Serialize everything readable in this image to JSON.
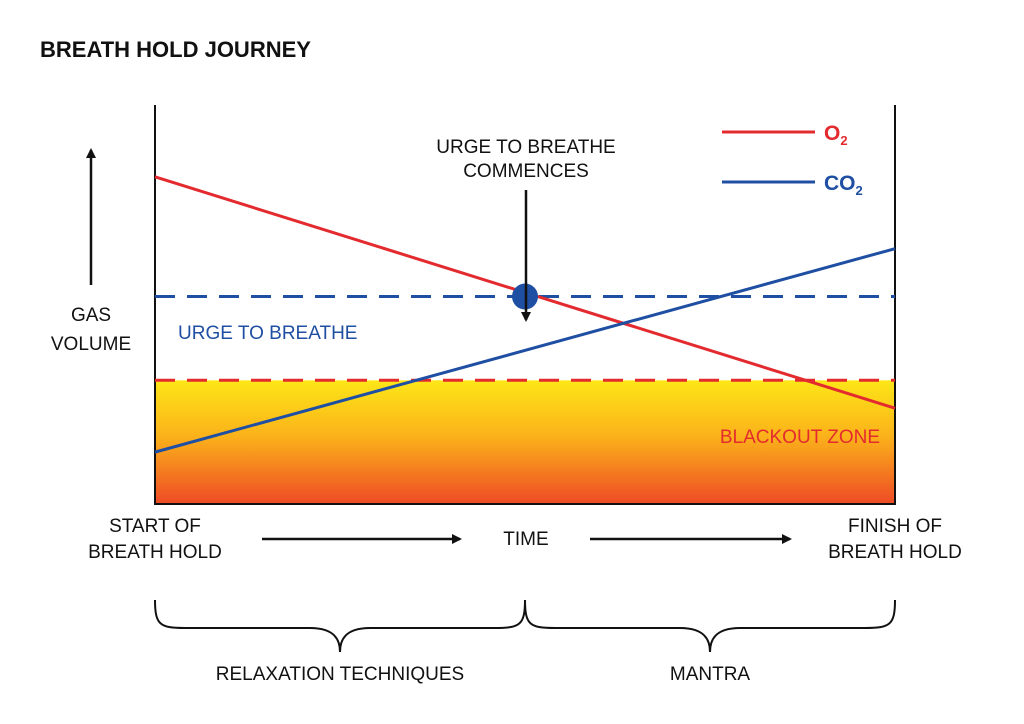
{
  "title": "BREATH HOLD JOURNEY",
  "colors": {
    "o2": "#e32b2f",
    "co2": "#1f4fa3",
    "blackout_label": "#e32b2f",
    "gradient_top": "#fde617",
    "gradient_mid": "#fbb21a",
    "gradient_bottom": "#ee4a25"
  },
  "y_axis": {
    "label_line1": "GAS",
    "label_line2": "VOLUME"
  },
  "legend": [
    {
      "name": "O",
      "subscript": "2",
      "color": "#e32b2f"
    },
    {
      "name": "CO",
      "subscript": "2",
      "color": "#1f4fa3"
    }
  ],
  "annotations": {
    "urge_commences_line1": "URGE TO BREATHE",
    "urge_commences_line2": "COMMENCES",
    "urge_threshold": "URGE TO BREATHE",
    "blackout_zone": "BLACKOUT ZONE"
  },
  "x_axis": {
    "start_line1": "START OF",
    "start_line2": "BREATH HOLD",
    "center": "TIME",
    "finish_line1": "FINISH OF",
    "finish_line2": "BREATH HOLD"
  },
  "phases": [
    "RELAXATION TECHNIQUES",
    "MANTRA"
  ],
  "chart_data": {
    "type": "line",
    "x": [
      0,
      1
    ],
    "series": [
      {
        "name": "O2",
        "values": [
          0.82,
          0.24
        ]
      },
      {
        "name": "CO2",
        "values": [
          0.13,
          0.64
        ]
      }
    ],
    "thresholds": [
      {
        "name": "URGE TO BREATHE",
        "value": 0.52
      },
      {
        "name": "BLACKOUT ZONE",
        "value": 0.31
      }
    ],
    "marker": {
      "x": 0.5,
      "y": 0.52
    },
    "ylim": [
      0,
      1
    ]
  }
}
